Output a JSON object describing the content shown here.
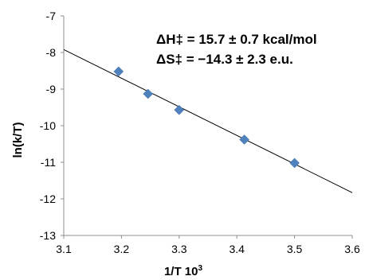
{
  "chart_data": {
    "type": "scatter",
    "title": "",
    "xlabel": "1/T  10",
    "xlabel_superscript": "3",
    "ylabel": "ln(k/T)",
    "xlim": [
      3.1,
      3.6
    ],
    "ylim": [
      -13,
      -7
    ],
    "xticks": [
      "3.1",
      "3.2",
      "3.3",
      "3.4",
      "3.5",
      "3.6"
    ],
    "yticks": [
      "-7",
      "-8",
      "-9",
      "-10",
      "-11",
      "-12",
      "-13"
    ],
    "grid": false,
    "legend": "none",
    "marker_color": "#4f81bd",
    "line_color": "#000000",
    "series": [
      {
        "x": [
          3.195,
          3.246,
          3.3,
          3.413,
          3.5
        ],
        "y": [
          -8.52,
          -9.13,
          -9.57,
          -10.38,
          -11.02
        ]
      }
    ],
    "trendline": {
      "x": [
        3.1,
        3.6
      ],
      "y": [
        -7.92,
        -11.83
      ]
    },
    "annotations": [
      "ΔH‡ = 15.7 ± 0.7 kcal/mol",
      "ΔS‡ = −14.3 ± 2.3 e.u."
    ]
  }
}
